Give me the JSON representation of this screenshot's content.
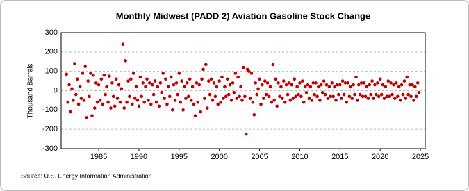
{
  "chart_data": {
    "type": "scatter",
    "title": "Monthly Midwest (PADD 2) Aviation Gasoline Stock Change",
    "y_label": "Thousand Barrels",
    "source": "Source: U.S. Energy Information Administration",
    "xlim": [
      1980.33,
      2025.6
    ],
    "xticks": [
      1985,
      1990,
      1995,
      2000,
      2005,
      2010,
      2015,
      2020,
      2025
    ],
    "ylim": [
      -300,
      300
    ],
    "yticks": [
      -300,
      -200,
      -100,
      0,
      100,
      200,
      300
    ],
    "grid": true,
    "series": [
      {
        "name": "Stock Change",
        "color": "#c00000",
        "x": [
          1981.0,
          1981.17,
          1981.33,
          1981.5,
          1981.67,
          1981.83,
          1982.0,
          1982.17,
          1982.33,
          1982.5,
          1982.67,
          1982.83,
          1983.0,
          1983.17,
          1983.33,
          1983.5,
          1983.67,
          1983.83,
          1984.0,
          1984.17,
          1984.33,
          1984.5,
          1984.67,
          1984.83,
          1985.0,
          1985.17,
          1985.33,
          1985.5,
          1985.67,
          1985.83,
          1986.0,
          1986.17,
          1986.33,
          1986.5,
          1986.67,
          1986.83,
          1987.0,
          1987.17,
          1987.33,
          1987.5,
          1987.67,
          1987.83,
          1988.0,
          1988.17,
          1988.33,
          1988.5,
          1988.67,
          1988.83,
          1989.0,
          1989.17,
          1989.33,
          1989.5,
          1989.67,
          1989.83,
          1990.0,
          1990.17,
          1990.33,
          1990.5,
          1990.67,
          1990.83,
          1991.0,
          1991.17,
          1991.33,
          1991.5,
          1991.67,
          1991.83,
          1992.0,
          1992.17,
          1992.33,
          1992.5,
          1992.67,
          1992.83,
          1993.0,
          1993.17,
          1993.33,
          1993.5,
          1993.67,
          1993.83,
          1994.0,
          1994.17,
          1994.33,
          1994.5,
          1994.67,
          1994.83,
          1995.0,
          1995.17,
          1995.33,
          1995.5,
          1995.67,
          1995.83,
          1996.0,
          1996.17,
          1996.33,
          1996.5,
          1996.67,
          1996.83,
          1997.0,
          1997.17,
          1997.33,
          1997.5,
          1997.67,
          1997.83,
          1998.0,
          1998.17,
          1998.33,
          1998.5,
          1998.67,
          1998.83,
          1999.0,
          1999.17,
          1999.33,
          1999.5,
          1999.67,
          1999.83,
          2000.0,
          2000.17,
          2000.33,
          2000.5,
          2000.67,
          2000.83,
          2001.0,
          2001.17,
          2001.33,
          2001.5,
          2001.67,
          2001.83,
          2002.0,
          2002.17,
          2002.33,
          2002.5,
          2002.67,
          2002.83,
          2003.0,
          2003.17,
          2003.33,
          2003.5,
          2003.67,
          2003.83,
          2004.0,
          2004.17,
          2004.33,
          2004.5,
          2004.67,
          2004.83,
          2005.0,
          2005.17,
          2005.33,
          2005.5,
          2005.67,
          2005.83,
          2006.0,
          2006.17,
          2006.33,
          2006.5,
          2006.67,
          2006.83,
          2007.0,
          2007.17,
          2007.33,
          2007.5,
          2007.67,
          2007.83,
          2008.0,
          2008.17,
          2008.33,
          2008.5,
          2008.67,
          2008.83,
          2009.0,
          2009.17,
          2009.33,
          2009.5,
          2009.67,
          2009.83,
          2010.0,
          2010.17,
          2010.33,
          2010.5,
          2010.67,
          2010.83,
          2011.0,
          2011.17,
          2011.33,
          2011.5,
          2011.67,
          2011.83,
          2012.0,
          2012.17,
          2012.33,
          2012.5,
          2012.67,
          2012.83,
          2013.0,
          2013.17,
          2013.33,
          2013.5,
          2013.67,
          2013.83,
          2014.0,
          2014.17,
          2014.33,
          2014.5,
          2014.67,
          2014.83,
          2015.0,
          2015.17,
          2015.33,
          2015.5,
          2015.67,
          2015.83,
          2016.0,
          2016.17,
          2016.33,
          2016.5,
          2016.67,
          2016.83,
          2017.0,
          2017.17,
          2017.33,
          2017.5,
          2017.67,
          2017.83,
          2018.0,
          2018.17,
          2018.33,
          2018.5,
          2018.67,
          2018.83,
          2019.0,
          2019.17,
          2019.33,
          2019.5,
          2019.67,
          2019.83,
          2020.0,
          2020.17,
          2020.33,
          2020.5,
          2020.67,
          2020.83,
          2021.0,
          2021.17,
          2021.33,
          2021.5,
          2021.67,
          2021.83,
          2022.0,
          2022.17,
          2022.33,
          2022.5,
          2022.67,
          2022.83,
          2023.0,
          2023.17,
          2023.33,
          2023.5,
          2023.67,
          2023.83,
          2024.0,
          2024.17,
          2024.33,
          2024.5,
          2024.67,
          2024.83
        ],
        "values": [
          85,
          -60,
          30,
          -110,
          10,
          -50,
          140,
          -20,
          60,
          -70,
          20,
          -40,
          90,
          -50,
          125,
          -140,
          50,
          -30,
          90,
          -130,
          80,
          -90,
          40,
          -60,
          30,
          -50,
          60,
          -70,
          80,
          -20,
          20,
          -60,
          75,
          -90,
          40,
          -30,
          -80,
          60,
          -40,
          30,
          -60,
          10,
          240,
          -90,
          155,
          -60,
          50,
          -30,
          60,
          -70,
          90,
          -40,
          20,
          -50,
          -80,
          70,
          -30,
          40,
          -60,
          20,
          60,
          -50,
          40,
          -70,
          30,
          -20,
          50,
          -60,
          20,
          -80,
          40,
          -10,
          90,
          -40,
          60,
          -70,
          20,
          -30,
          70,
          -100,
          30,
          -50,
          40,
          -20,
          90,
          -60,
          50,
          -100,
          20,
          -40,
          40,
          -30,
          60,
          -50,
          20,
          -70,
          -130,
          40,
          -60,
          30,
          -110,
          60,
          110,
          -40,
          135,
          -90,
          50,
          -20,
          60,
          -50,
          40,
          -30,
          20,
          -70,
          50,
          -60,
          70,
          -40,
          20,
          -30,
          60,
          -20,
          30,
          -50,
          40,
          -10,
          90,
          -40,
          70,
          -30,
          20,
          -50,
          120,
          -30,
          -225,
          110,
          100,
          -40,
          90,
          -60,
          -125,
          40,
          -20,
          10,
          60,
          -70,
          30,
          -40,
          50,
          -20,
          40,
          -30,
          20,
          -60,
          135,
          -50,
          60,
          -80,
          40,
          -30,
          20,
          -40,
          50,
          -60,
          30,
          -20,
          40,
          -50,
          30,
          -40,
          60,
          -30,
          20,
          -20,
          40,
          -30,
          50,
          -60,
          20,
          -10,
          30,
          -40,
          20,
          -50,
          40,
          -20,
          40,
          -30,
          20,
          -50,
          30,
          -10,
          50,
          -20,
          30,
          -40,
          20,
          -30,
          40,
          -30,
          20,
          -50,
          30,
          -20,
          30,
          -40,
          50,
          -20,
          40,
          -60,
          40,
          -30,
          20,
          -40,
          30,
          -20,
          70,
          -50,
          30,
          -20,
          40,
          -30,
          40,
          -30,
          20,
          -40,
          30,
          -20,
          50,
          -40,
          30,
          -20,
          40,
          -30,
          60,
          -20,
          30,
          -40,
          20,
          -30,
          50,
          -30,
          40,
          -20,
          30,
          -40,
          40,
          -30,
          20,
          -50,
          30,
          -20,
          50,
          -40,
          70,
          -20,
          30,
          -30,
          30,
          -50,
          20,
          -30,
          40,
          -10
        ]
      }
    ]
  }
}
